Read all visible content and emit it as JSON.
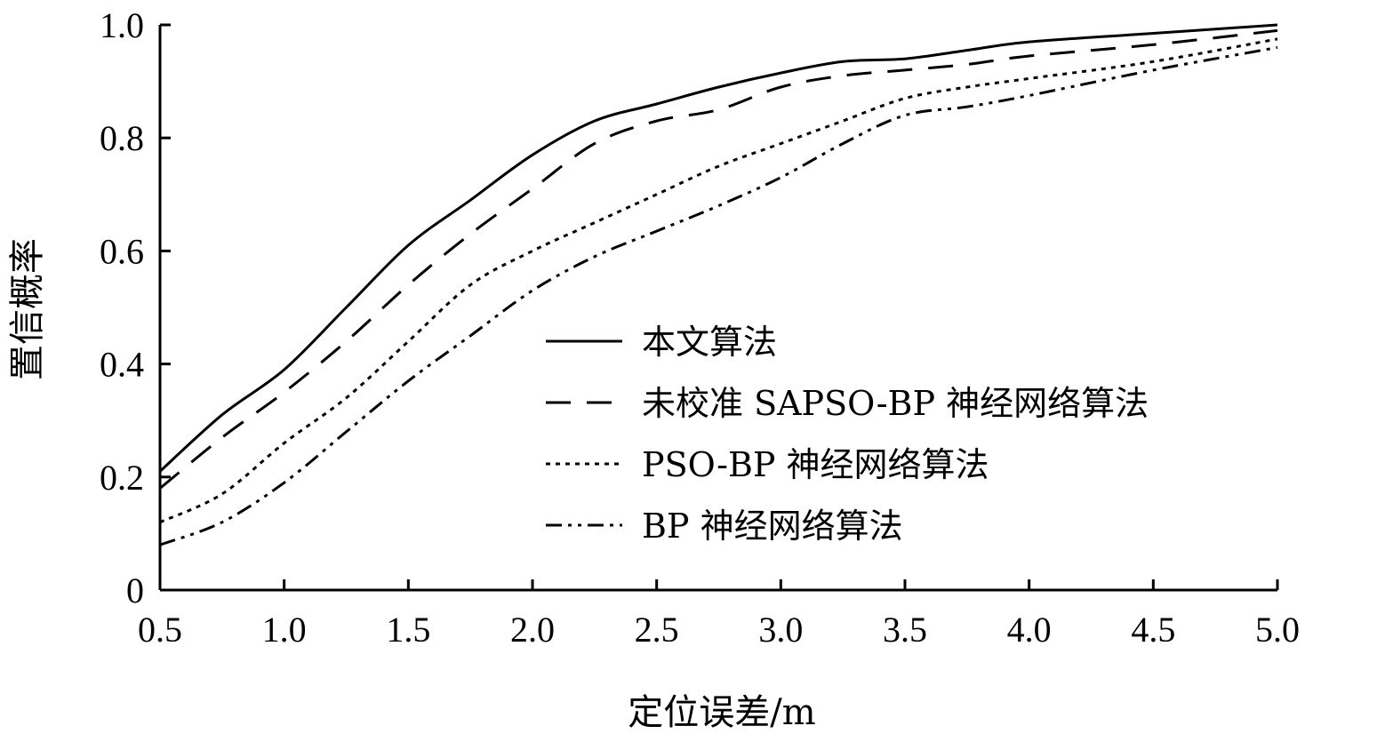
{
  "chart_data": {
    "type": "line",
    "title": "",
    "xlabel": "定位误差/m",
    "ylabel": "置信概率",
    "xlim": [
      0.5,
      5.0
    ],
    "ylim": [
      0,
      1.0
    ],
    "xticks": [
      "0.5",
      "1.0",
      "1.5",
      "2.0",
      "2.5",
      "3.0",
      "3.5",
      "4.0",
      "4.5",
      "5.0"
    ],
    "yticks": [
      "0",
      "0.2",
      "0.4",
      "0.6",
      "0.8",
      "1.0"
    ],
    "grid": false,
    "legend_position": "center-right",
    "series": [
      {
        "name": "本文算法",
        "style": "solid",
        "x": [
          0.5,
          0.75,
          1.0,
          1.25,
          1.5,
          1.75,
          2.0,
          2.25,
          2.5,
          2.75,
          3.0,
          3.25,
          3.5,
          3.75,
          4.0,
          4.5,
          5.0
        ],
        "y": [
          0.21,
          0.31,
          0.39,
          0.5,
          0.61,
          0.69,
          0.77,
          0.83,
          0.86,
          0.89,
          0.915,
          0.935,
          0.94,
          0.955,
          0.97,
          0.985,
          1.0
        ]
      },
      {
        "name": "未校准 SAPSO-BP 神经网络算法",
        "style": "dashed",
        "x": [
          0.5,
          0.75,
          1.0,
          1.25,
          1.5,
          1.75,
          2.0,
          2.25,
          2.5,
          2.75,
          3.0,
          3.25,
          3.5,
          3.75,
          4.0,
          4.5,
          5.0
        ],
        "y": [
          0.18,
          0.27,
          0.35,
          0.44,
          0.54,
          0.63,
          0.71,
          0.79,
          0.83,
          0.85,
          0.89,
          0.91,
          0.92,
          0.93,
          0.945,
          0.965,
          0.99
        ]
      },
      {
        "name": "PSO-BP 神经网络算法",
        "style": "dotted",
        "x": [
          0.5,
          0.75,
          1.0,
          1.25,
          1.5,
          1.75,
          2.0,
          2.25,
          2.5,
          2.75,
          3.0,
          3.25,
          3.5,
          3.75,
          4.0,
          4.5,
          5.0
        ],
        "y": [
          0.12,
          0.17,
          0.26,
          0.34,
          0.44,
          0.54,
          0.6,
          0.65,
          0.7,
          0.75,
          0.79,
          0.83,
          0.87,
          0.89,
          0.905,
          0.935,
          0.975
        ]
      },
      {
        "name": "BP 神经网络算法",
        "style": "dash-dot-dot",
        "x": [
          0.5,
          0.75,
          1.0,
          1.25,
          1.5,
          1.75,
          2.0,
          2.25,
          2.5,
          2.75,
          3.0,
          3.25,
          3.5,
          3.75,
          4.0,
          4.5,
          5.0
        ],
        "y": [
          0.08,
          0.12,
          0.19,
          0.28,
          0.37,
          0.45,
          0.53,
          0.59,
          0.635,
          0.68,
          0.73,
          0.79,
          0.84,
          0.855,
          0.875,
          0.92,
          0.96
        ]
      }
    ]
  }
}
